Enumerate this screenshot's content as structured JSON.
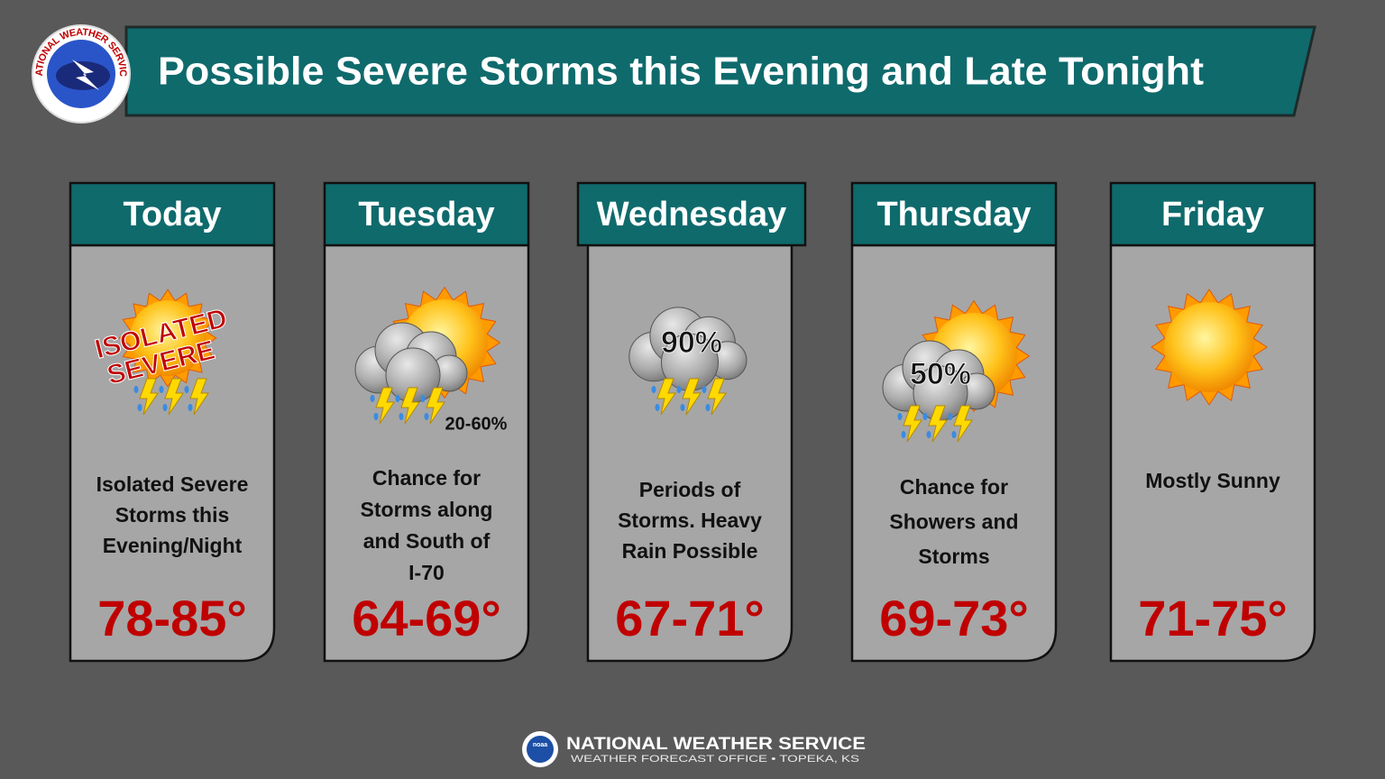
{
  "header": {
    "title": "Possible Severe Storms this Evening and Late Tonight",
    "logo_text": "NATIONAL WEATHER SERVICE"
  },
  "days": [
    {
      "name": "Today",
      "icon_text": [
        "ISOLATED",
        "SEVERE"
      ],
      "description": [
        "Isolated Severe",
        "Storms this",
        "Evening/Night"
      ],
      "temperature": "78-85°"
    },
    {
      "name": "Tuesday",
      "icon_text": [
        "20-60%"
      ],
      "description": [
        "Chance for",
        "Storms along",
        "and South of",
        "I-70"
      ],
      "temperature": "64-69°"
    },
    {
      "name": "Wednesday",
      "icon_text": [
        "90%"
      ],
      "description": [
        "Periods of",
        "Storms. Heavy",
        "Rain Possible"
      ],
      "temperature": "67-71°"
    },
    {
      "name": "Thursday",
      "icon_text": [
        "50%"
      ],
      "description": [
        "Chance for",
        "Showers and",
        "Storms"
      ],
      "temperature": "69-73°"
    },
    {
      "name": "Friday",
      "icon_text": [],
      "description": [
        "Mostly Sunny"
      ],
      "temperature": "71-75°"
    }
  ],
  "footer": {
    "logo_text": "noaa",
    "title": "NATIONAL WEATHER SERVICE",
    "subtitle": "WEATHER FORECAST OFFICE • TOPEKA, KS"
  }
}
